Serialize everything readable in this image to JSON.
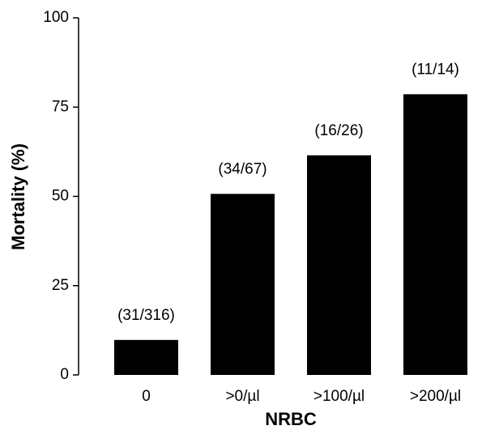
{
  "chart_data": {
    "type": "bar",
    "x_label": "NRBC",
    "y_label": "Mortality (%)",
    "categories": [
      "0",
      ">0/µl",
      ">100/µl",
      ">200/µl"
    ],
    "values": [
      9.8,
      50.7,
      61.5,
      78.6
    ],
    "annotations": [
      "(31/316)",
      "(34/67)",
      "(16/26)",
      "(11/14)"
    ],
    "color": "#000000",
    "ylim": [
      0,
      100
    ],
    "yticks": [
      0,
      25,
      50,
      75,
      100
    ],
    "grid": false
  }
}
